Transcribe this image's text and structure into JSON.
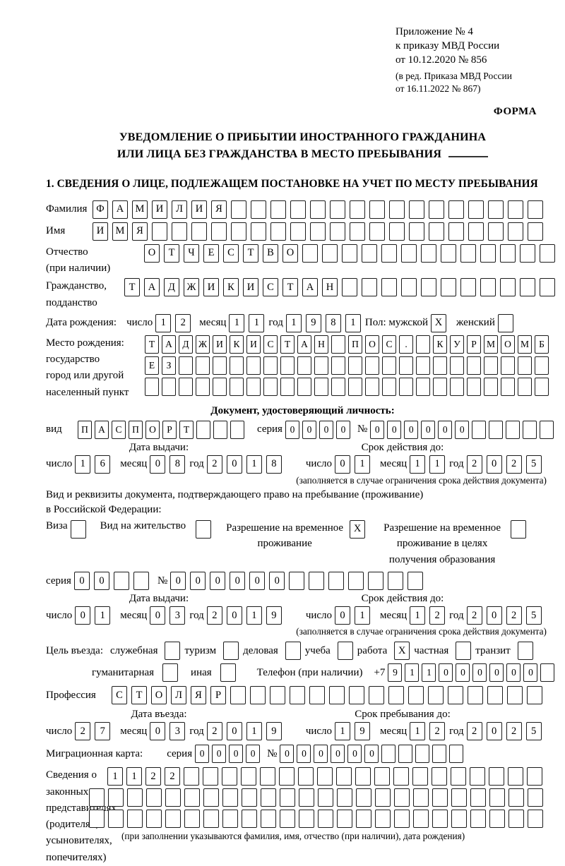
{
  "header": {
    "line1": "Приложение № 4",
    "line2": "к приказу МВД России",
    "line3": "от 10.12.2020 № 856",
    "line4": "(в ред. Приказа МВД России",
    "line5": "от 16.11.2022 № 867)",
    "forma": "ФОРМА"
  },
  "title": {
    "line1": "УВЕДОМЛЕНИЕ О ПРИБЫТИИ ИНОСТРАННОГО ГРАЖДАНИНА",
    "line2": "ИЛИ ЛИЦА БЕЗ ГРАЖДАНСТВА В МЕСТО ПРЕБЫВАНИЯ"
  },
  "section1_heading": "1. СВЕДЕНИЯ О ЛИЦЕ, ПОДЛЕЖАЩЕМ ПОСТАНОВКЕ НА УЧЕТ ПО МЕСТУ ПРЕБЫВАНИЯ",
  "labels": {
    "chislo": "число",
    "mesyac": "месяц",
    "god": "год",
    "seriya": "серия",
    "nomer": "№",
    "data_vydachi": "Дата выдачи:",
    "srok_deystviya": "Срок действия до:",
    "validity_note": "(заполняется в случае ограничения срока действия документа)"
  },
  "surname": {
    "label": "Фамилия",
    "cells": [
      "Ф",
      "А",
      "М",
      "И",
      "Л",
      "И",
      "Я",
      "",
      "",
      "",
      "",
      "",
      "",
      "",
      "",
      "",
      "",
      "",
      "",
      "",
      "",
      "",
      ""
    ]
  },
  "name": {
    "label": "Имя",
    "cells": [
      "И",
      "М",
      "Я",
      "",
      "",
      "",
      "",
      "",
      "",
      "",
      "",
      "",
      "",
      "",
      "",
      "",
      "",
      "",
      "",
      "",
      "",
      "",
      ""
    ]
  },
  "patronymic": {
    "label_line1": "Отчество",
    "label_line2": "(при наличии)",
    "cells": [
      "О",
      "Т",
      "Ч",
      "Е",
      "С",
      "Т",
      "В",
      "О",
      "",
      "",
      "",
      "",
      "",
      "",
      "",
      "",
      "",
      "",
      "",
      "",
      ""
    ]
  },
  "citizenship": {
    "label_line1": "Гражданство,",
    "label_line2": "подданство",
    "cells": [
      "Т",
      "А",
      "Д",
      "Ж",
      "И",
      "К",
      "И",
      "С",
      "Т",
      "А",
      "Н",
      "",
      "",
      "",
      "",
      "",
      "",
      "",
      "",
      "",
      "",
      ""
    ]
  },
  "birth_date": {
    "label": "Дата рождения:",
    "day": [
      "1",
      "2"
    ],
    "month": [
      "1",
      "1"
    ],
    "year": [
      "1",
      "9",
      "8",
      "1"
    ],
    "gender_label": "Пол: мужской",
    "male": [
      "X"
    ],
    "female_label": "женский",
    "female": [
      ""
    ]
  },
  "birth_place": {
    "label_line1": "Место рождения:",
    "label_line2": "государство",
    "label_line3": "город или другой",
    "label_line4": "населенный пункт",
    "row1": [
      "Т",
      "А",
      "Д",
      "Ж",
      "И",
      "К",
      "И",
      "С",
      "Т",
      "А",
      "Н",
      "",
      "П",
      "О",
      "С",
      ".",
      "",
      "К",
      "У",
      "Р",
      "М",
      "О",
      "М",
      "Б"
    ],
    "row2": [
      "Е",
      "З",
      "",
      "",
      "",
      "",
      "",
      "",
      "",
      "",
      "",
      "",
      "",
      "",
      "",
      "",
      "",
      "",
      "",
      "",
      "",
      "",
      "",
      ""
    ],
    "row3": [
      "",
      "",
      "",
      "",
      "",
      "",
      "",
      "",
      "",
      "",
      "",
      "",
      "",
      "",
      "",
      "",
      "",
      "",
      "",
      "",
      "",
      "",
      "",
      ""
    ]
  },
  "identity_doc": {
    "heading": "Документ, удостоверяющий личность:",
    "vid_label": "вид",
    "vid": [
      "П",
      "А",
      "С",
      "П",
      "О",
      "Р",
      "Т",
      "",
      "",
      ""
    ],
    "seriya": [
      "0",
      "0",
      "0",
      "0"
    ],
    "nomer": [
      "0",
      "0",
      "0",
      "0",
      "0",
      "0",
      "",
      "",
      "",
      "",
      ""
    ],
    "issue": {
      "day": [
        "1",
        "6"
      ],
      "month": [
        "0",
        "8"
      ],
      "year": [
        "2",
        "0",
        "1",
        "8"
      ]
    },
    "valid": {
      "day": [
        "0",
        "1"
      ],
      "month": [
        "1",
        "1"
      ],
      "year": [
        "2",
        "0",
        "2",
        "5"
      ]
    }
  },
  "residence_doc": {
    "heading_line1": "Вид и реквизиты документа, подтверждающего право на пребывание (проживание)",
    "heading_line2": "в Российской Федерации:",
    "visa_label": "Виза",
    "visa": [
      ""
    ],
    "vnzh_label": "Вид на жительство",
    "vnzh": [
      ""
    ],
    "rvp_label": "Разрешение на временное проживание",
    "rvp": [
      "X"
    ],
    "rvp_edu_label": "Разрешение на временное проживание в целях получения образования",
    "rvp_edu": [
      ""
    ],
    "seriya": [
      "0",
      "0",
      "",
      ""
    ],
    "nomer": [
      "0",
      "0",
      "0",
      "0",
      "0",
      "0",
      "",
      "",
      "",
      "",
      "",
      "",
      ""
    ],
    "issue": {
      "day": [
        "0",
        "1"
      ],
      "month": [
        "0",
        "3"
      ],
      "year": [
        "2",
        "0",
        "1",
        "9"
      ]
    },
    "valid": {
      "day": [
        "0",
        "1"
      ],
      "month": [
        "1",
        "2"
      ],
      "year": [
        "2",
        "0",
        "2",
        "5"
      ]
    }
  },
  "purpose": {
    "lead": "Цель въезда:",
    "items": [
      {
        "label": "служебная",
        "v": [
          ""
        ]
      },
      {
        "label": "туризм",
        "v": [
          ""
        ]
      },
      {
        "label": "деловая",
        "v": [
          ""
        ]
      },
      {
        "label": "учеба",
        "v": [
          ""
        ]
      },
      {
        "label": "работа",
        "v": [
          "X"
        ]
      },
      {
        "label": "частная",
        "v": [
          ""
        ]
      },
      {
        "label": "транзит",
        "v": [
          ""
        ]
      },
      {
        "label": "гуманитарная",
        "v": [
          ""
        ]
      },
      {
        "label": "иная",
        "v": [
          ""
        ]
      }
    ],
    "phone_label": "Телефон (при наличии)",
    "phone_prefix": "+7",
    "phone_digits": [
      "9",
      "1",
      "1",
      "0",
      "0",
      "0",
      "0",
      "0",
      "0",
      ""
    ]
  },
  "profession": {
    "label": "Профессия",
    "cells": [
      "С",
      "Т",
      "О",
      "Л",
      "Я",
      "Р",
      "",
      "",
      "",
      "",
      "",
      "",
      "",
      "",
      "",
      "",
      "",
      "",
      "",
      "",
      "",
      ""
    ]
  },
  "entry": {
    "head_left": "Дата въезда:",
    "head_right": "Срок пребывания до:",
    "issue": {
      "day": [
        "2",
        "7"
      ],
      "month": [
        "0",
        "3"
      ],
      "year": [
        "2",
        "0",
        "1",
        "9"
      ]
    },
    "valid": {
      "day": [
        "1",
        "9"
      ],
      "month": [
        "1",
        "2"
      ],
      "year": [
        "2",
        "0",
        "2",
        "5"
      ]
    }
  },
  "migration_card": {
    "label": "Миграционная карта:",
    "seriya": [
      "0",
      "0",
      "0",
      "0"
    ],
    "nomer": [
      "0",
      "0",
      "0",
      "0",
      "0",
      "0",
      "",
      "",
      "",
      "",
      ""
    ]
  },
  "representatives": {
    "label_line1": "Сведения о",
    "label_line2": "законных",
    "label_line3": "представителях",
    "label_line4": "(родителях,",
    "label_line5": "усыновителях,",
    "label_line6": "попечителях)",
    "row1": [
      "1",
      "1",
      "2",
      "2",
      "",
      "",
      "",
      "",
      "",
      "",
      "",
      "",
      "",
      "",
      "",
      "",
      "",
      "",
      "",
      "",
      "",
      "",
      ""
    ],
    "row2": [
      "",
      "",
      "",
      "",
      "",
      "",
      "",
      "",
      "",
      "",
      "",
      "",
      "",
      "",
      "",
      "",
      "",
      "",
      "",
      "",
      "",
      "",
      "",
      ""
    ],
    "row3": [
      "",
      "",
      "",
      "",
      "",
      "",
      "",
      "",
      "",
      "",
      "",
      "",
      "",
      "",
      "",
      "",
      "",
      "",
      "",
      "",
      "",
      "",
      "",
      ""
    ],
    "note": "(при заполнении указываются фамилия, имя, отчество (при наличии), дата рождения)"
  }
}
